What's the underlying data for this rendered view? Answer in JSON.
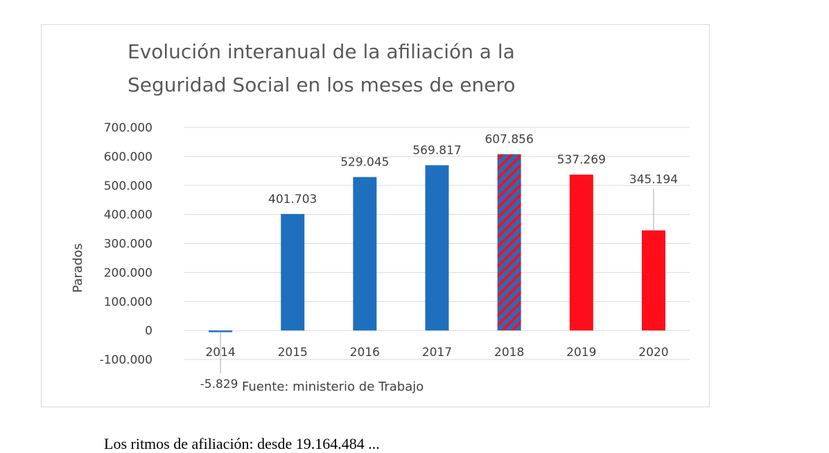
{
  "chart_data": {
    "type": "bar",
    "title_lines": [
      "Evolución interanual de la afiliación a la",
      "Seguridad Social en los meses de enero"
    ],
    "ylabel": "Parados",
    "xlabel": "",
    "categories": [
      "2014",
      "2015",
      "2016",
      "2017",
      "2018",
      "2019",
      "2020"
    ],
    "values": [
      -5829,
      401703,
      529045,
      569817,
      607856,
      537269,
      345194
    ],
    "value_labels": [
      "-5.829",
      "401.703",
      "529.045",
      "569.817",
      "607.856",
      "537.269",
      "345.194"
    ],
    "bar_fills": [
      "blue",
      "blue",
      "blue",
      "blue",
      "blue-red-stripes",
      "red",
      "red"
    ],
    "ylim": [
      -100000,
      700000
    ],
    "yticks": [
      -100000,
      0,
      100000,
      200000,
      300000,
      400000,
      500000,
      600000,
      700000
    ],
    "ytick_labels": [
      "-100.000",
      "0",
      "100.000",
      "200.000",
      "300.000",
      "400.000",
      "500.000",
      "600.000",
      "700.000"
    ],
    "grid": true,
    "annotation": "Fuente: ministerio de Trabajo",
    "colors": {
      "blue": "#1f6fbf",
      "red": "#ff0d1a",
      "grid": "#d9d9d9"
    }
  },
  "page": {
    "bottom_text": "Los ritmos de afiliación: desde 19.164.484 ..."
  }
}
